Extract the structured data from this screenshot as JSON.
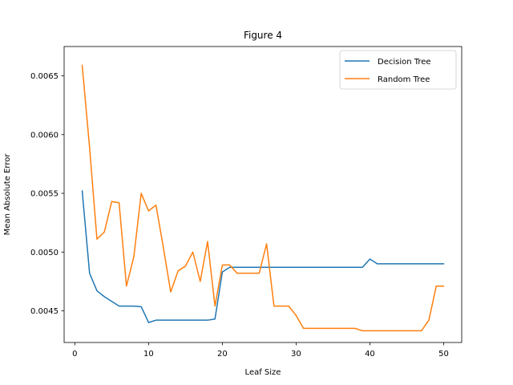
{
  "chart_data": {
    "type": "line",
    "title": "Figure 4",
    "xlabel": "Leaf Size",
    "ylabel": "Mean Absolute Error",
    "xlim": [
      -1.45,
      52.45
    ],
    "ylim": [
      0.00423,
      0.00675
    ],
    "xticks": [
      0,
      10,
      20,
      30,
      40,
      50
    ],
    "xtick_labels": [
      "0",
      "10",
      "20",
      "30",
      "40",
      "50"
    ],
    "yticks": [
      0.0045,
      0.005,
      0.0055,
      0.006,
      0.0065
    ],
    "ytick_labels": [
      "0.0045",
      "0.0050",
      "0.0055",
      "0.0060",
      "0.0065"
    ],
    "grid": false,
    "legend_position": "upper right",
    "x": [
      1,
      2,
      3,
      4,
      5,
      6,
      7,
      8,
      9,
      10,
      11,
      12,
      13,
      14,
      15,
      16,
      17,
      18,
      19,
      20,
      21,
      22,
      23,
      24,
      25,
      26,
      27,
      28,
      29,
      30,
      31,
      32,
      33,
      34,
      35,
      36,
      37,
      38,
      39,
      40,
      41,
      42,
      43,
      44,
      45,
      46,
      47,
      48,
      49,
      50
    ],
    "series": [
      {
        "name": "Decision Tree",
        "color": "#1f77b4",
        "values": [
          0.00552,
          0.00482,
          0.00467,
          0.00462,
          0.00458,
          0.00454,
          0.00454,
          0.00454,
          0.004535,
          0.0044,
          0.00442,
          0.00442,
          0.00442,
          0.00442,
          0.00442,
          0.00442,
          0.00442,
          0.00442,
          0.00443,
          0.00483,
          0.00487,
          0.00487,
          0.00487,
          0.00487,
          0.00487,
          0.00487,
          0.00487,
          0.00487,
          0.00487,
          0.00487,
          0.00487,
          0.00487,
          0.00487,
          0.00487,
          0.00487,
          0.00487,
          0.00487,
          0.00487,
          0.00487,
          0.00494,
          0.0049,
          0.0049,
          0.0049,
          0.0049,
          0.0049,
          0.0049,
          0.0049,
          0.0049,
          0.0049,
          0.0049
        ]
      },
      {
        "name": "Random Tree",
        "color": "#ff7f0e",
        "values": [
          0.00659,
          0.00589,
          0.00511,
          0.00517,
          0.00543,
          0.00542,
          0.00471,
          0.00496,
          0.0055,
          0.00535,
          0.0054,
          0.00504,
          0.00466,
          0.00484,
          0.00488,
          0.005,
          0.00475,
          0.00509,
          0.00454,
          0.00489,
          0.00489,
          0.00482,
          0.00482,
          0.00482,
          0.00482,
          0.00507,
          0.00454,
          0.00454,
          0.00454,
          0.00446,
          0.00435,
          0.00435,
          0.00435,
          0.00435,
          0.00435,
          0.00435,
          0.00435,
          0.00435,
          0.00433,
          0.00433,
          0.00433,
          0.00433,
          0.00433,
          0.00433,
          0.00433,
          0.00433,
          0.00433,
          0.00442,
          0.00471,
          0.00471
        ]
      }
    ]
  }
}
